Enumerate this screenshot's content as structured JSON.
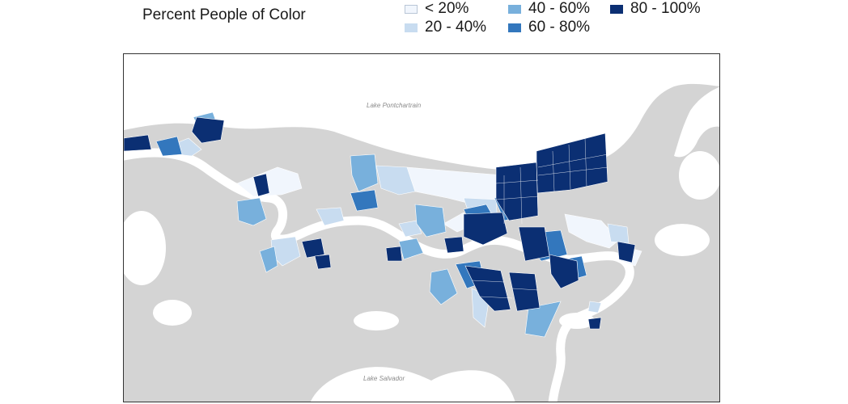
{
  "title": "Percent People of Color",
  "legend": [
    {
      "label": "< 20%",
      "color": "#f1f6fd"
    },
    {
      "label": "20 - 40%",
      "color": "#c8dcf0"
    },
    {
      "label": "40 - 60%",
      "color": "#78b0dc"
    },
    {
      "label": "60 - 80%",
      "color": "#3377bd"
    },
    {
      "label": "80 - 100%",
      "color": "#0b2f73"
    }
  ],
  "map": {
    "water_labels": {
      "lake_north": "Lake Pontchartrain",
      "lake_south": "Lake Salvador"
    },
    "colors": {
      "land": "#d4d4d4",
      "water": "#ffffff",
      "river": "#ffffff"
    }
  }
}
